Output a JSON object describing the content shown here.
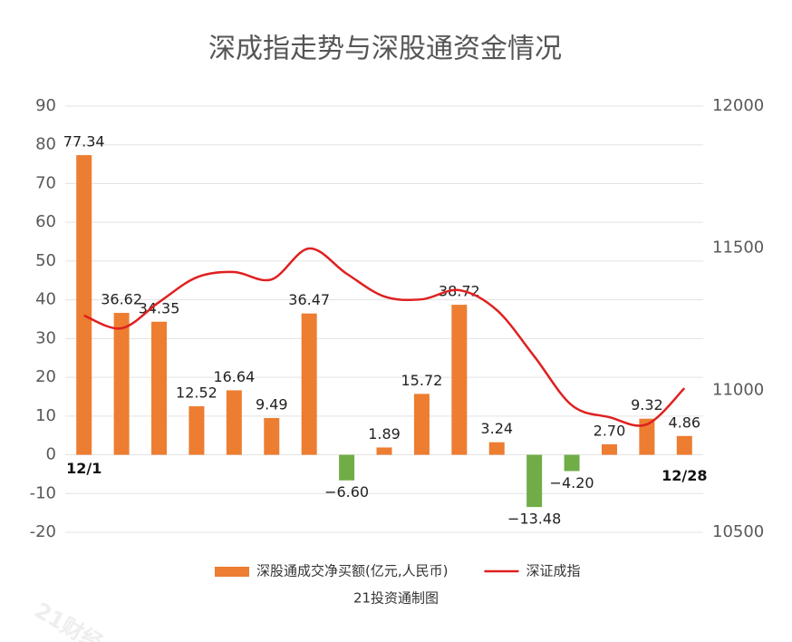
{
  "chart_data": {
    "type": "bar",
    "title": "深成指走势与深股通资金情况",
    "categories": [
      "12/1",
      null,
      null,
      null,
      null,
      null,
      null,
      null,
      null,
      null,
      null,
      null,
      null,
      null,
      null,
      null,
      "12/28"
    ],
    "series": [
      {
        "name": "深股通成交净买额(亿元,人民币)",
        "type": "bar",
        "color": "#ED7D31",
        "negative_color": "#70AD47",
        "values": [
          77.34,
          36.62,
          34.35,
          12.52,
          16.64,
          9.49,
          36.47,
          -6.6,
          1.89,
          15.72,
          38.72,
          3.24,
          -13.48,
          -4.2,
          2.7,
          9.32,
          4.86
        ],
        "value_labels": [
          "77.34",
          "36.62",
          "34.35",
          "12.52",
          "16.64",
          "9.49",
          "36.47",
          "−6.60",
          "1.89",
          "15.72",
          "38.72",
          "3.24",
          "−13.48",
          "−4.20",
          "2.70",
          "9.32",
          "4.86"
        ]
      },
      {
        "name": "深证成指",
        "type": "line",
        "axis": "y2",
        "color": "#E02020",
        "values": [
          11263,
          11218,
          11310,
          11397,
          11416,
          11390,
          11499,
          11410,
          11330,
          11320,
          11352,
          11282,
          11119,
          10947,
          10905,
          10880,
          11007
        ]
      }
    ],
    "ylim": [
      -20,
      90
    ],
    "yticks": [
      -20,
      -10,
      0,
      10,
      20,
      30,
      40,
      50,
      60,
      70,
      80,
      90
    ],
    "y2lim": [
      10500,
      12000
    ],
    "y2ticks": [
      10500,
      11000,
      11500,
      12000
    ],
    "grid": true,
    "legend": "bottom",
    "source": "21投资通制图",
    "watermark": "21财经"
  }
}
